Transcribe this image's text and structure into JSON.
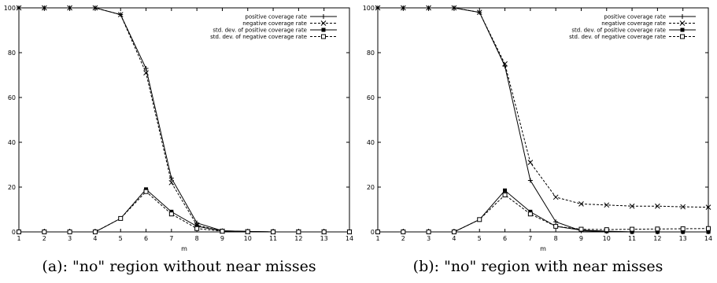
{
  "chart_data": [
    {
      "type": "line",
      "caption": "(a): \"no\" region without near misses",
      "xlabel": "m",
      "ylabel": "",
      "title": "",
      "xlim": [
        1,
        14
      ],
      "ylim": [
        0,
        100
      ],
      "x_ticks": [
        1,
        2,
        3,
        4,
        5,
        6,
        7,
        8,
        9,
        10,
        11,
        12,
        13,
        14
      ],
      "y_ticks": [
        0,
        20,
        40,
        60,
        80,
        100
      ],
      "grid": false,
      "legend_position": "top-right",
      "series": [
        {
          "name": "positive coverage rate",
          "line": "solid",
          "marker": "plus",
          "x": [
            1,
            2,
            3,
            4,
            5,
            6,
            7,
            8,
            9,
            10,
            11,
            12,
            13,
            14
          ],
          "values": [
            100,
            100,
            100,
            100,
            97,
            73,
            24,
            4,
            0.5,
            0.2,
            0,
            0,
            0,
            0
          ]
        },
        {
          "name": "negative coverage rate",
          "line": "dashed",
          "marker": "cross",
          "x": [
            1,
            2,
            3,
            4,
            5,
            6,
            7,
            8,
            9,
            10,
            11,
            12,
            13,
            14
          ],
          "values": [
            100,
            100,
            100,
            100,
            97,
            71,
            22,
            3,
            0.3,
            0.1,
            0,
            0,
            0,
            0
          ]
        },
        {
          "name": "std. dev. of positive coverage rate",
          "line": "solid",
          "marker": "filled-square",
          "x": [
            1,
            2,
            3,
            4,
            5,
            6,
            7,
            8,
            9,
            10,
            11,
            12,
            13,
            14
          ],
          "values": [
            0,
            0,
            0,
            0,
            6,
            19,
            9,
            2.5,
            0.5,
            0.2,
            0,
            0,
            0,
            0
          ]
        },
        {
          "name": "std. dev. of negative coverage rate",
          "line": "dashed",
          "marker": "open-square",
          "x": [
            1,
            2,
            3,
            4,
            5,
            6,
            7,
            8,
            9,
            10,
            11,
            12,
            13,
            14
          ],
          "values": [
            0,
            0,
            0,
            0,
            6,
            18,
            8,
            1.5,
            0.3,
            0.1,
            0,
            0,
            0,
            0
          ]
        }
      ]
    },
    {
      "type": "line",
      "caption": "(b): \"no\" region with near misses",
      "xlabel": "m",
      "ylabel": "",
      "title": "",
      "xlim": [
        1,
        14
      ],
      "ylim": [
        0,
        100
      ],
      "x_ticks": [
        1,
        2,
        3,
        4,
        5,
        6,
        7,
        8,
        9,
        10,
        11,
        12,
        13,
        14
      ],
      "y_ticks": [
        0,
        20,
        40,
        60,
        80,
        100
      ],
      "grid": false,
      "legend_position": "top-right",
      "series": [
        {
          "name": "positive coverage rate",
          "line": "solid",
          "marker": "plus",
          "x": [
            1,
            2,
            3,
            4,
            5,
            6,
            7,
            8,
            9,
            10,
            11,
            12,
            13,
            14
          ],
          "values": [
            100,
            100,
            100,
            100,
            98,
            74,
            23,
            4.5,
            0.5,
            0.2,
            0,
            0,
            0,
            0
          ]
        },
        {
          "name": "negative coverage rate",
          "line": "dashed",
          "marker": "cross",
          "x": [
            1,
            2,
            3,
            4,
            5,
            6,
            7,
            8,
            9,
            10,
            11,
            12,
            13,
            14
          ],
          "values": [
            100,
            100,
            100,
            100,
            98,
            75,
            31,
            15.5,
            12.5,
            12,
            11.5,
            11.5,
            11.2,
            11
          ]
        },
        {
          "name": "std. dev. of positive coverage rate",
          "line": "solid",
          "marker": "filled-square",
          "x": [
            1,
            2,
            3,
            4,
            5,
            6,
            7,
            8,
            9,
            10,
            11,
            12,
            13,
            14
          ],
          "values": [
            0,
            0,
            0,
            0,
            5.5,
            18.5,
            9,
            2.5,
            0.8,
            0.3,
            0,
            0,
            0,
            0
          ]
        },
        {
          "name": "std. dev. of negative coverage rate",
          "line": "dashed",
          "marker": "open-square",
          "x": [
            1,
            2,
            3,
            4,
            5,
            6,
            7,
            8,
            9,
            10,
            11,
            12,
            13,
            14
          ],
          "values": [
            0,
            0,
            0,
            0,
            5.5,
            16.5,
            8,
            2.5,
            1.2,
            1,
            1.2,
            1.3,
            1.4,
            1.5
          ]
        }
      ]
    }
  ]
}
